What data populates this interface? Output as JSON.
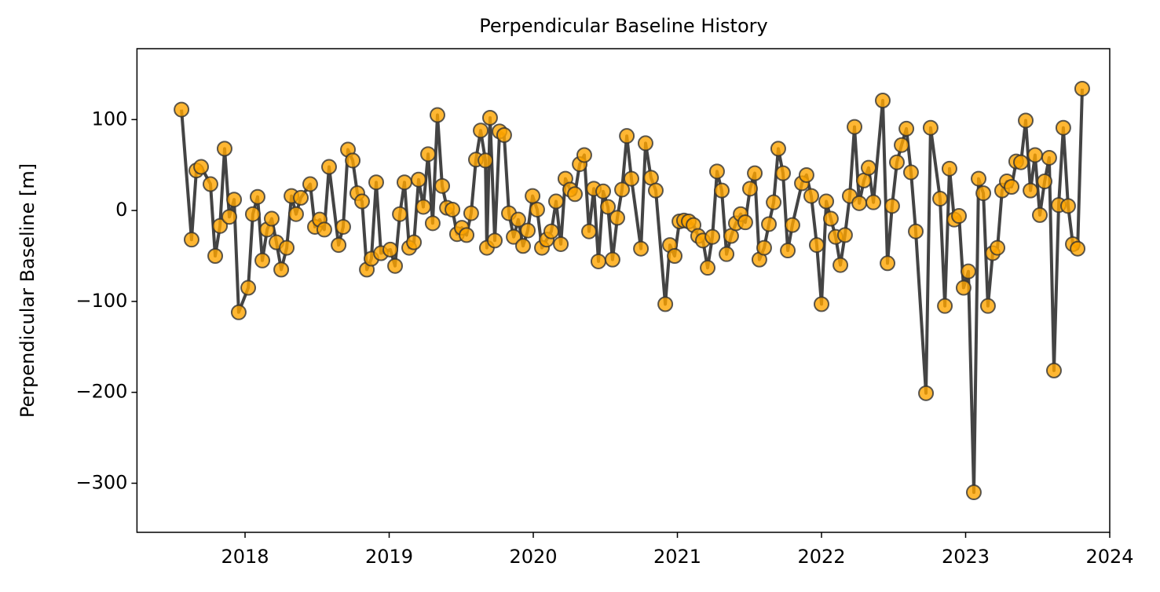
{
  "chart_data": {
    "type": "line",
    "title": "Perpendicular Baseline History",
    "ylabel": "Perpendicular Baseline [m]",
    "xlim": [
      2017.25,
      2024
    ],
    "xticks": [
      2018,
      2019,
      2020,
      2021,
      2022,
      2023,
      2024
    ],
    "ylim": [
      -354,
      178
    ],
    "yticks": [
      {
        "value": -300,
        "label": "−300"
      },
      {
        "value": -200,
        "label": "−200"
      },
      {
        "value": -100,
        "label": "−100"
      },
      0,
      100
    ],
    "grid": false,
    "series": [
      {
        "color": "#ffa500",
        "line_color": "#444444",
        "x": [
          2017.559,
          2017.629,
          2017.662,
          2017.695,
          2017.76,
          2017.793,
          2017.826,
          2017.858,
          2017.891,
          2017.924,
          2017.956,
          2018.022,
          2018.054,
          2018.087,
          2018.12,
          2018.153,
          2018.185,
          2018.218,
          2018.251,
          2018.289,
          2018.322,
          2018.354,
          2018.387,
          2018.452,
          2018.485,
          2018.518,
          2018.55,
          2018.583,
          2018.649,
          2018.681,
          2018.714,
          2018.747,
          2018.779,
          2018.812,
          2018.845,
          2018.877,
          2018.91,
          2018.943,
          2019.008,
          2019.041,
          2019.074,
          2019.106,
          2019.139,
          2019.172,
          2019.204,
          2019.237,
          2019.27,
          2019.302,
          2019.335,
          2019.368,
          2019.401,
          2019.439,
          2019.471,
          2019.504,
          2019.537,
          2019.569,
          2019.602,
          2019.635,
          2019.668,
          2019.678,
          2019.7,
          2019.733,
          2019.766,
          2019.798,
          2019.831,
          2019.864,
          2019.896,
          2019.929,
          2019.962,
          2019.995,
          2020.027,
          2020.06,
          2020.093,
          2020.125,
          2020.158,
          2020.191,
          2020.223,
          2020.256,
          2020.289,
          2020.322,
          2020.354,
          2020.387,
          2020.42,
          2020.452,
          2020.485,
          2020.518,
          2020.55,
          2020.583,
          2020.616,
          2020.649,
          2020.681,
          2020.747,
          2020.779,
          2020.817,
          2020.85,
          2020.916,
          2020.948,
          2020.981,
          2021.014,
          2021.046,
          2021.079,
          2021.112,
          2021.144,
          2021.177,
          2021.21,
          2021.243,
          2021.275,
          2021.308,
          2021.341,
          2021.373,
          2021.406,
          2021.439,
          2021.471,
          2021.504,
          2021.537,
          2021.569,
          2021.602,
          2021.635,
          2021.668,
          2021.7,
          2021.733,
          2021.766,
          2021.798,
          2021.864,
          2021.896,
          2021.929,
          2021.967,
          2022.0,
          2022.033,
          2022.065,
          2022.098,
          2022.131,
          2022.163,
          2022.196,
          2022.229,
          2022.262,
          2022.294,
          2022.327,
          2022.36,
          2022.425,
          2022.458,
          2022.49,
          2022.523,
          2022.556,
          2022.589,
          2022.621,
          2022.654,
          2022.725,
          2022.757,
          2022.823,
          2022.856,
          2022.888,
          2022.921,
          2022.954,
          2022.986,
          2023.019,
          2023.057,
          2023.09,
          2023.123,
          2023.155,
          2023.188,
          2023.221,
          2023.253,
          2023.286,
          2023.319,
          2023.351,
          2023.384,
          2023.417,
          2023.45,
          2023.482,
          2023.515,
          2023.548,
          2023.58,
          2023.613,
          2023.646,
          2023.678,
          2023.711,
          2023.744,
          2023.777,
          2023.809
        ],
        "values": [
          111,
          -32,
          44,
          48,
          29,
          -50,
          -17,
          68,
          -7,
          12,
          -112,
          -85,
          -4,
          15,
          -55,
          -21,
          -9,
          -35,
          -65,
          -41,
          16,
          -4,
          14,
          29,
          -18,
          -10,
          -21,
          48,
          -38,
          -18,
          67,
          55,
          19,
          10,
          -65,
          -53,
          31,
          -47,
          -43,
          -61,
          -4,
          31,
          -41,
          -35,
          34,
          4,
          62,
          -14,
          105,
          27,
          3,
          1,
          -26,
          -19,
          -27,
          -3,
          56,
          88,
          55,
          -41,
          102,
          -33,
          87,
          83,
          -3,
          -29,
          -10,
          -39,
          -22,
          16,
          1,
          -41,
          -32,
          -23,
          10,
          -37,
          35,
          23,
          18,
          51,
          61,
          -23,
          24,
          -56,
          21,
          4,
          -54,
          -8,
          23,
          82,
          35,
          -42,
          74,
          36,
          22,
          -103,
          -38,
          -50,
          -12,
          -11,
          -12,
          -16,
          -28,
          -33,
          -63,
          -29,
          43,
          22,
          -48,
          -28,
          -14,
          -4,
          -13,
          24,
          41,
          -54,
          -41,
          -15,
          9,
          68,
          41,
          -44,
          -16,
          30,
          39,
          16,
          -38,
          -103,
          10,
          -9,
          -29,
          -60,
          -27,
          16,
          92,
          8,
          33,
          47,
          9,
          121,
          -58,
          5,
          53,
          72,
          90,
          42,
          -23,
          -201,
          91,
          13,
          -105,
          46,
          -10,
          -6,
          -85,
          -67,
          -310,
          35,
          19,
          -105,
          -47,
          -41,
          22,
          32,
          26,
          54,
          53,
          99,
          22,
          61,
          -5,
          32,
          58,
          -176,
          6,
          91,
          5,
          -37,
          -42,
          134
        ]
      }
    ]
  }
}
